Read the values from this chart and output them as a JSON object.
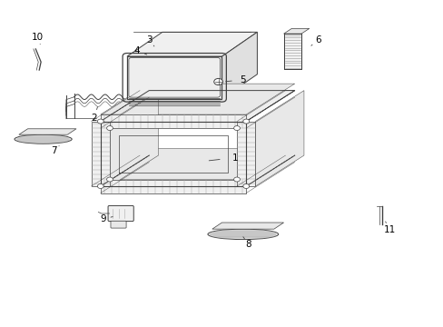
{
  "background_color": "#ffffff",
  "line_color": "#404040",
  "figure_width": 4.89,
  "figure_height": 3.6,
  "dpi": 100,
  "label_fs": 7.5,
  "labels": {
    "1": [
      0.53,
      0.52,
      0.47,
      0.51
    ],
    "2": [
      0.215,
      0.635,
      0.23,
      0.66
    ],
    "3": [
      0.34,
      0.88,
      0.355,
      0.855
    ],
    "4": [
      0.31,
      0.845,
      0.335,
      0.83
    ],
    "5": [
      0.545,
      0.755,
      0.51,
      0.745
    ],
    "6": [
      0.715,
      0.88,
      0.695,
      0.855
    ],
    "7": [
      0.125,
      0.535,
      0.135,
      0.555
    ],
    "8": [
      0.565,
      0.255,
      0.548,
      0.275
    ],
    "9": [
      0.235,
      0.33,
      0.265,
      0.335
    ],
    "10": [
      0.088,
      0.885,
      0.095,
      0.86
    ],
    "11": [
      0.882,
      0.295,
      0.87,
      0.325
    ]
  }
}
